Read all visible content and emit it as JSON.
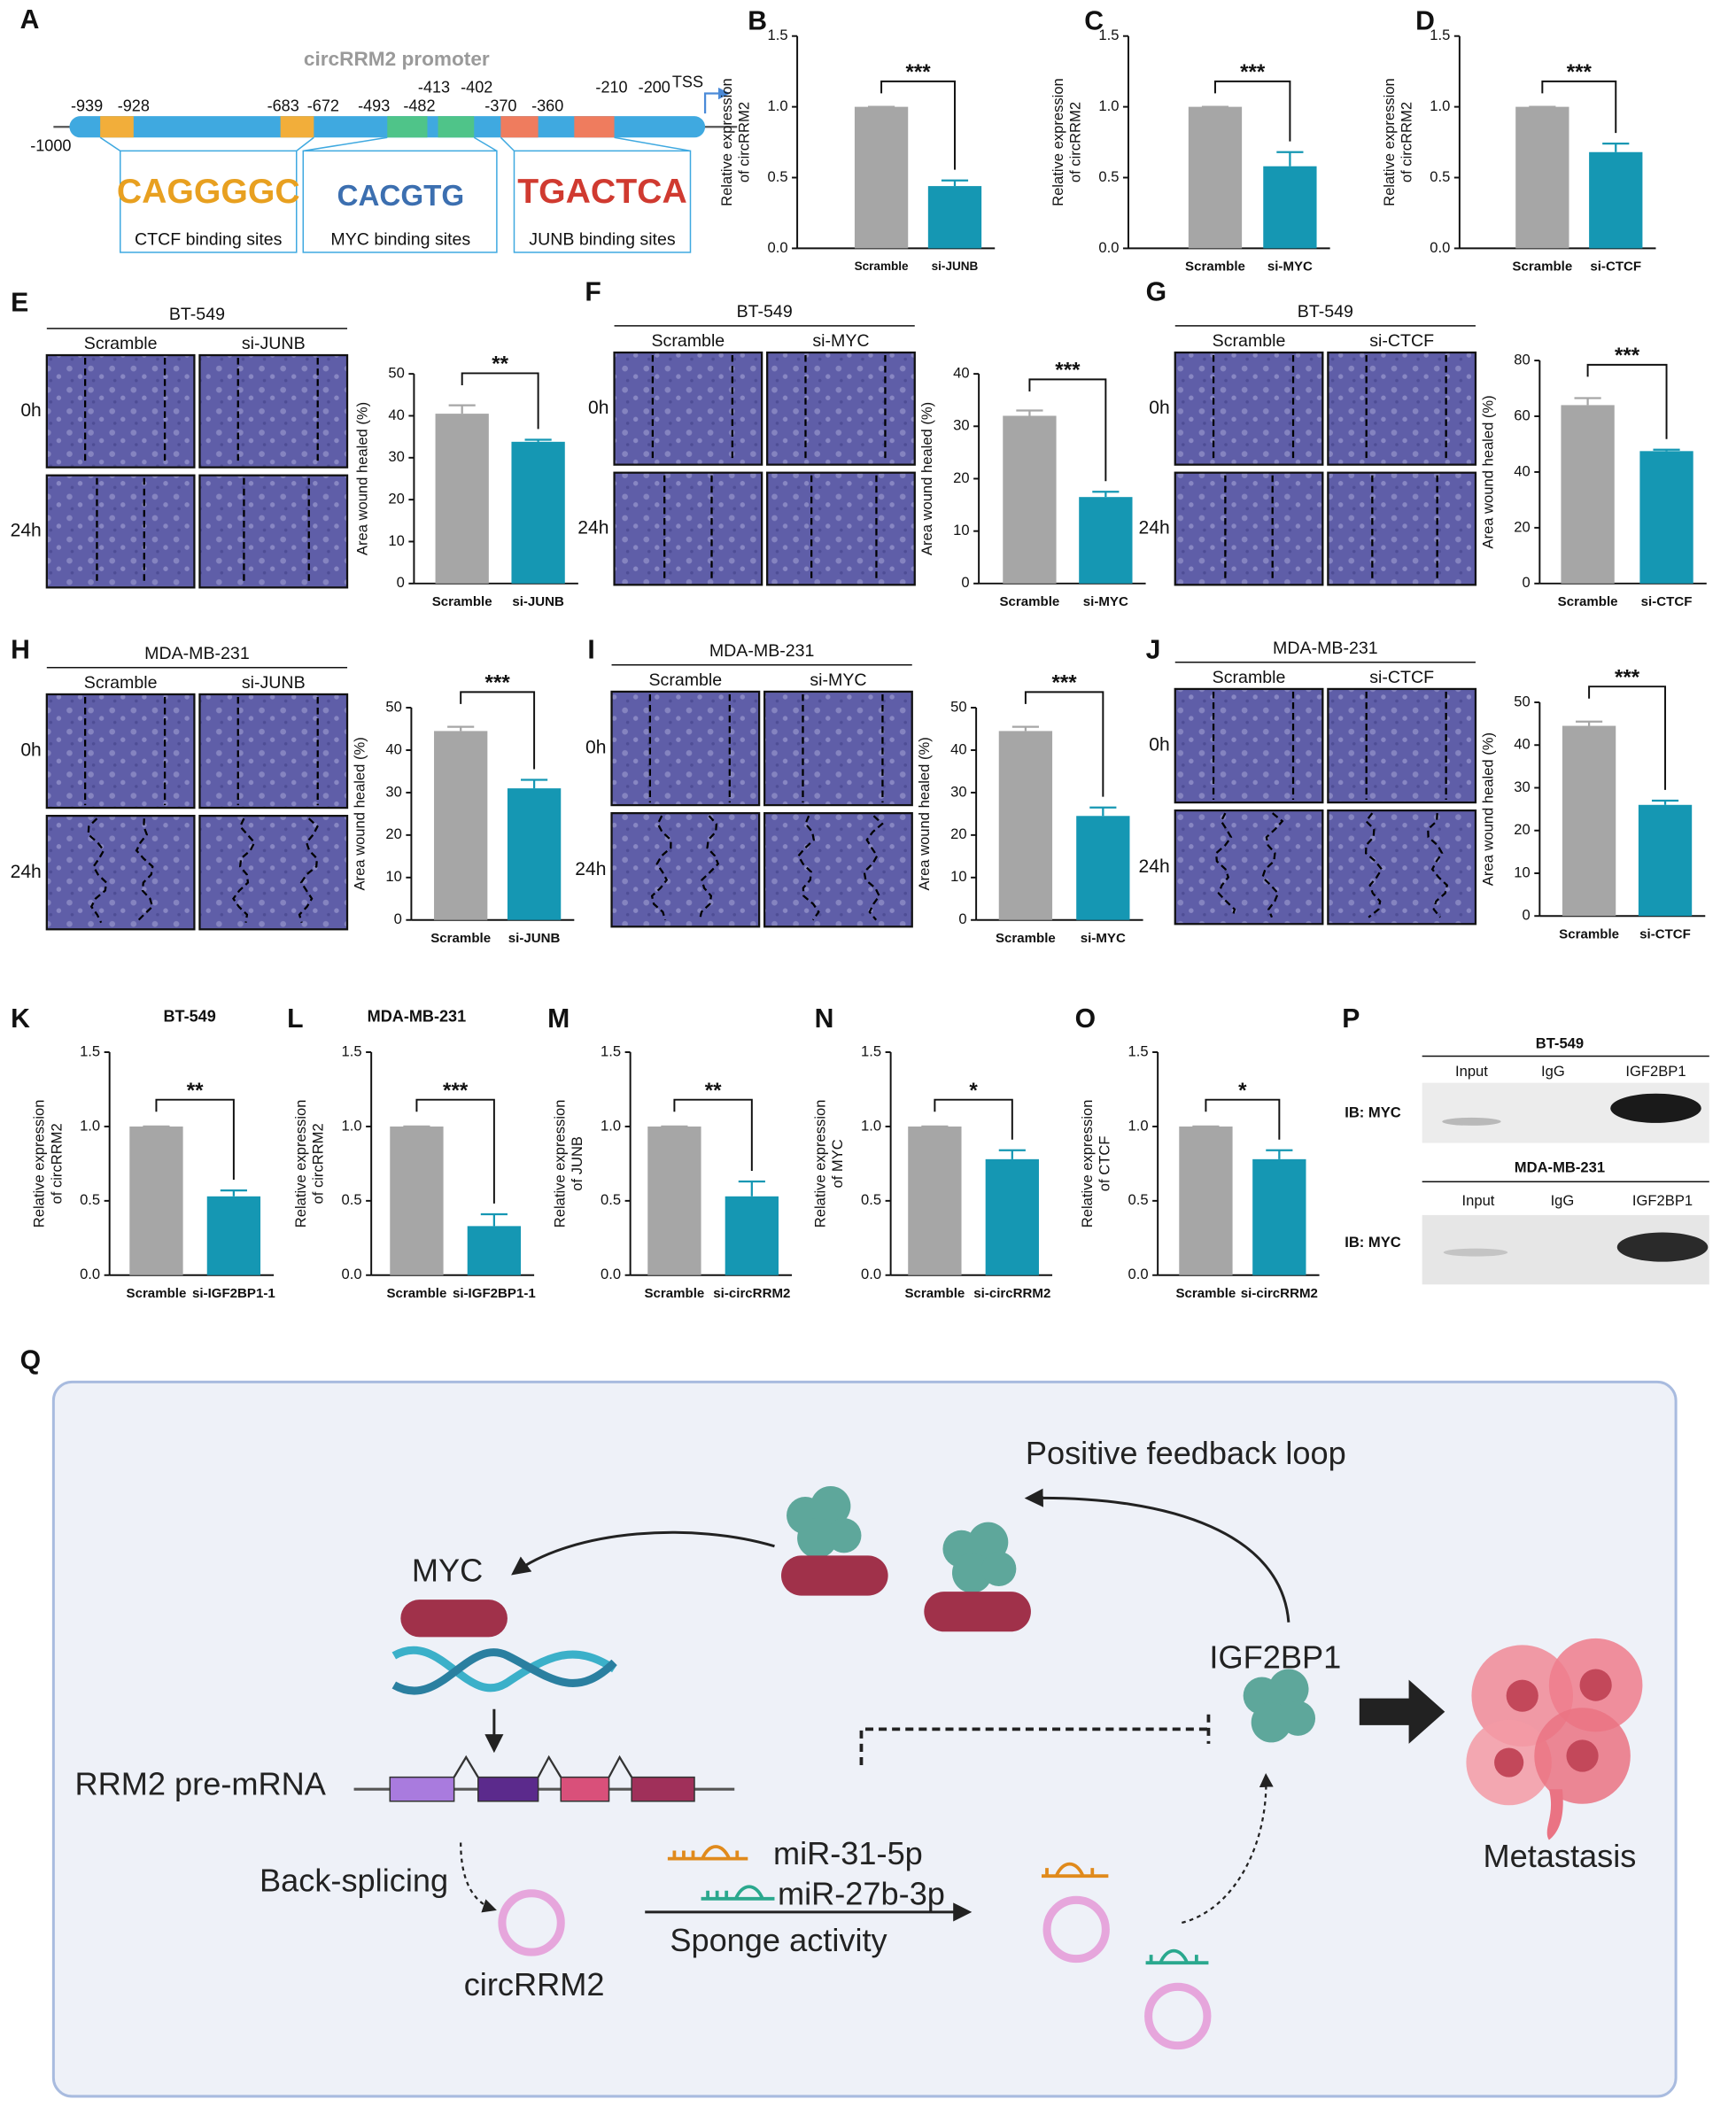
{
  "panel_a": {
    "letter": "A",
    "title": "circRRM2 promoter",
    "start": "-1000",
    "tss": "TSS",
    "positions": [
      "-939",
      "-928",
      "-683",
      "-672",
      "-493",
      "-482",
      "-413",
      "-402",
      "-370",
      "-360",
      "-210",
      "-200"
    ],
    "logos": [
      "CAGGGGC",
      "CACGTG",
      "TGACTCA"
    ],
    "sites": [
      "CTCF binding sites",
      "MYC binding sites",
      "JUNB binding sites"
    ]
  },
  "chart_data": [
    {
      "type": "bar",
      "letter": "B",
      "ylabel": [
        "Relative expression",
        "of circRRM2"
      ],
      "categories": [
        "Scramble",
        "si-JUNB"
      ],
      "values": [
        1,
        0.44
      ],
      "errors": [
        0,
        0.04
      ],
      "colors": [
        "#a6a6a6",
        "#1597b3"
      ],
      "ylim": [
        0,
        1.5
      ],
      "yticks": [
        {
          "value": 0,
          "label": "0.0"
        },
        0.5,
        {
          "value": 1,
          "label": "1.0"
        },
        1.5
      ],
      "significance": "***"
    },
    {
      "type": "bar",
      "letter": "C",
      "ylabel": [
        "Relative expression",
        "of circRRM2"
      ],
      "categories": [
        "Scramble",
        "si-MYC"
      ],
      "values": [
        1,
        0.58
      ],
      "errors": [
        0,
        0.1
      ],
      "colors": [
        "#a6a6a6",
        "#1597b3"
      ],
      "ylim": [
        0,
        1.5
      ],
      "yticks": [
        {
          "value": 0,
          "label": "0.0"
        },
        0.5,
        {
          "value": 1,
          "label": "1.0"
        },
        1.5
      ],
      "significance": "***"
    },
    {
      "type": "bar",
      "letter": "D",
      "ylabel": [
        "Relative expression",
        "of circRRM2"
      ],
      "categories": [
        "Scramble",
        "si-CTCF"
      ],
      "values": [
        1,
        0.68
      ],
      "errors": [
        0,
        0.06
      ],
      "colors": [
        "#a6a6a6",
        "#1597b3"
      ],
      "ylim": [
        0,
        1.5
      ],
      "yticks": [
        {
          "value": 0,
          "label": "0.0"
        },
        0.5,
        {
          "value": 1,
          "label": "1.0"
        },
        1.5
      ],
      "significance": "***"
    },
    {
      "type": "bar",
      "letter": "E",
      "image_title": "BT-549",
      "image_columns": [
        "Scramble",
        "si-JUNB"
      ],
      "image_rows": [
        "0h",
        "24h"
      ],
      "ylabel": "Area wound healed (%)",
      "categories": [
        "Scramble",
        "si-JUNB"
      ],
      "values": [
        40.5,
        33.8
      ],
      "errors": [
        2,
        0.5
      ],
      "colors": [
        "#a6a6a6",
        "#1597b3"
      ],
      "ylim": [
        0,
        50
      ],
      "yticks": [
        0,
        10,
        20,
        30,
        40,
        50
      ],
      "significance": "**"
    },
    {
      "type": "bar",
      "letter": "F",
      "image_title": "BT-549",
      "image_columns": [
        "Scramble",
        "si-MYC"
      ],
      "image_rows": [
        "0h",
        "24h"
      ],
      "ylabel": "Area wound healed (%)",
      "categories": [
        "Scramble",
        "si-MYC"
      ],
      "values": [
        32,
        16.5
      ],
      "errors": [
        1,
        1
      ],
      "colors": [
        "#a6a6a6",
        "#1597b3"
      ],
      "ylim": [
        0,
        40
      ],
      "yticks": [
        0,
        10,
        20,
        30,
        40
      ],
      "significance": "***"
    },
    {
      "type": "bar",
      "letter": "G",
      "image_title": "BT-549",
      "image_columns": [
        "Scramble",
        "si-CTCF"
      ],
      "image_rows": [
        "0h",
        "24h"
      ],
      "ylabel": "Area wound healed (%)",
      "categories": [
        "Scramble",
        "si-CTCF"
      ],
      "values": [
        64,
        47.5
      ],
      "errors": [
        2.5,
        0.5
      ],
      "colors": [
        "#a6a6a6",
        "#1597b3"
      ],
      "ylim": [
        0,
        80
      ],
      "yticks": [
        0,
        20,
        40,
        60,
        80
      ],
      "significance": "***"
    },
    {
      "type": "bar",
      "letter": "H",
      "image_title": "MDA-MB-231",
      "image_columns": [
        "Scramble",
        "si-JUNB"
      ],
      "image_rows": [
        "0h",
        "24h"
      ],
      "ylabel": "Area wound healed (%)",
      "categories": [
        "Scramble",
        "si-JUNB"
      ],
      "values": [
        44.5,
        31
      ],
      "errors": [
        1,
        2
      ],
      "colors": [
        "#a6a6a6",
        "#1597b3"
      ],
      "ylim": [
        0,
        50
      ],
      "yticks": [
        0,
        10,
        20,
        30,
        40,
        50
      ],
      "significance": "***"
    },
    {
      "type": "bar",
      "letter": "I",
      "image_title": "MDA-MB-231",
      "image_columns": [
        "Scramble",
        "si-MYC"
      ],
      "image_rows": [
        "0h",
        "24h"
      ],
      "ylabel": "Area wound healed (%)",
      "categories": [
        "Scramble",
        "si-MYC"
      ],
      "values": [
        44.5,
        24.5
      ],
      "errors": [
        1,
        2
      ],
      "colors": [
        "#a6a6a6",
        "#1597b3"
      ],
      "ylim": [
        0,
        50
      ],
      "yticks": [
        0,
        10,
        20,
        30,
        40,
        50
      ],
      "significance": "***"
    },
    {
      "type": "bar",
      "letter": "J",
      "image_title": "MDA-MB-231",
      "image_columns": [
        "Scramble",
        "si-CTCF"
      ],
      "image_rows": [
        "0h",
        "24h"
      ],
      "ylabel": "Area wound healed (%)",
      "categories": [
        "Scramble",
        "si-CTCF"
      ],
      "values": [
        44.5,
        26
      ],
      "errors": [
        1,
        1
      ],
      "colors": [
        "#a6a6a6",
        "#1597b3"
      ],
      "ylim": [
        0,
        50
      ],
      "yticks": [
        0,
        10,
        20,
        30,
        40,
        50
      ],
      "significance": "***"
    },
    {
      "type": "bar",
      "letter": "K",
      "title": "BT-549",
      "ylabel": [
        "Relative expression",
        "of circRRM2"
      ],
      "categories": [
        "Scramble",
        "si-IGF2BP1-1"
      ],
      "values": [
        1,
        0.53
      ],
      "errors": [
        0,
        0.04
      ],
      "colors": [
        "#a6a6a6",
        "#1597b3"
      ],
      "ylim": [
        0,
        1.5
      ],
      "yticks": [
        {
          "value": 0,
          "label": "0.0"
        },
        0.5,
        {
          "value": 1,
          "label": "1.0"
        },
        1.5
      ],
      "significance": "**"
    },
    {
      "type": "bar",
      "letter": "L",
      "title": "MDA-MB-231",
      "ylabel": [
        "Relative expression",
        "of circRRM2"
      ],
      "categories": [
        "Scramble",
        "si-IGF2BP1-1"
      ],
      "values": [
        1,
        0.33
      ],
      "errors": [
        0,
        0.08
      ],
      "colors": [
        "#a6a6a6",
        "#1597b3"
      ],
      "ylim": [
        0,
        1.5
      ],
      "yticks": [
        {
          "value": 0,
          "label": "0.0"
        },
        0.5,
        {
          "value": 1,
          "label": "1.0"
        },
        1.5
      ],
      "significance": "***"
    },
    {
      "type": "bar",
      "letter": "M",
      "ylabel": [
        "Relative expression",
        "of JUNB"
      ],
      "categories": [
        "Scramble",
        "si-circRRM2"
      ],
      "values": [
        1,
        0.53
      ],
      "errors": [
        0,
        0.1
      ],
      "colors": [
        "#a6a6a6",
        "#1597b3"
      ],
      "ylim": [
        0,
        1.5
      ],
      "yticks": [
        {
          "value": 0,
          "label": "0.0"
        },
        0.5,
        {
          "value": 1,
          "label": "1.0"
        },
        1.5
      ],
      "significance": "**"
    },
    {
      "type": "bar",
      "letter": "N",
      "ylabel": [
        "Relative expression",
        "of MYC"
      ],
      "categories": [
        "Scramble",
        "si-circRRM2"
      ],
      "values": [
        1,
        0.78
      ],
      "errors": [
        0,
        0.06
      ],
      "colors": [
        "#a6a6a6",
        "#1597b3"
      ],
      "ylim": [
        0,
        1.5
      ],
      "yticks": [
        {
          "value": 0,
          "label": "0.0"
        },
        0.5,
        {
          "value": 1,
          "label": "1.0"
        },
        1.5
      ],
      "significance": "*"
    },
    {
      "type": "bar",
      "letter": "O",
      "ylabel": [
        "Relative expression",
        "of CTCF"
      ],
      "categories": [
        "Scramble",
        "si-circRRM2"
      ],
      "values": [
        1,
        0.78
      ],
      "errors": [
        0,
        0.06
      ],
      "colors": [
        "#a6a6a6",
        "#1597b3"
      ],
      "ylim": [
        0,
        1.5
      ],
      "yticks": [
        {
          "value": 0,
          "label": "0.0"
        },
        0.5,
        {
          "value": 1,
          "label": "1.0"
        },
        1.5
      ],
      "significance": "*"
    }
  ],
  "panel_p": {
    "letter": "P",
    "blots": [
      {
        "cell_line": "BT-549",
        "lanes": [
          "Input",
          "IgG",
          "IGF2BP1"
        ],
        "antibody": "IB: MYC"
      },
      {
        "cell_line": "MDA-MB-231",
        "lanes": [
          "Input",
          "IgG",
          "IGF2BP1"
        ],
        "antibody": "IB: MYC"
      }
    ]
  },
  "panel_q": {
    "letter": "Q",
    "loop": "Positive feedback loop",
    "myc": "MYC",
    "igf2bp1": "IGF2BP1",
    "pre_mrna": "RRM2 pre-mRNA",
    "back_splicing": "Back-splicing",
    "circrna": "circRRM2",
    "mir1": "miR-31-5p",
    "mir2": "miR-27b-3p",
    "sponge": "Sponge activity",
    "outcome": "Metastasis"
  }
}
